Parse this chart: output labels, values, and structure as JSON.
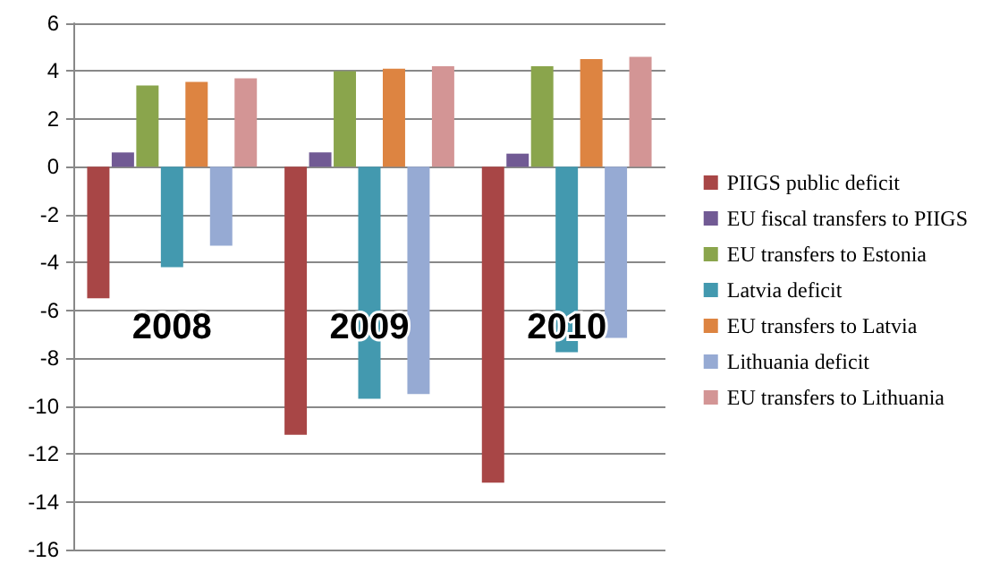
{
  "chart_data": {
    "type": "bar",
    "categories": [
      "2008",
      "2009",
      "2010"
    ],
    "series": [
      {
        "name": "PIIGS public deficit",
        "color": "#a84646",
        "values": [
          -5.5,
          -11.2,
          -13.2
        ]
      },
      {
        "name": "EU fiscal transfers to PIIGS",
        "color": "#715a94",
        "values": [
          0.6,
          0.6,
          0.55
        ]
      },
      {
        "name": "EU transfers to Estonia",
        "color": "#8aa54c",
        "values": [
          3.4,
          4.0,
          4.2
        ]
      },
      {
        "name": "Latvia deficit",
        "color": "#4399af",
        "values": [
          -4.2,
          -9.7,
          -7.75
        ]
      },
      {
        "name": "EU transfers to Latvia",
        "color": "#dd8441",
        "values": [
          3.55,
          4.1,
          4.5
        ]
      },
      {
        "name": "Lithuania deficit",
        "color": "#96aad3",
        "values": [
          -3.3,
          -9.5,
          -7.15
        ]
      },
      {
        "name": "EU transfers to Lithuania",
        "color": "#d39595",
        "values": [
          3.7,
          4.2,
          4.6
        ]
      }
    ],
    "ylim": [
      -16,
      6
    ],
    "yticks": [
      -16,
      -14,
      -12,
      -10,
      -8,
      -6,
      -4,
      -2,
      0,
      2,
      4,
      6
    ],
    "grid": "y",
    "legend": "right"
  }
}
